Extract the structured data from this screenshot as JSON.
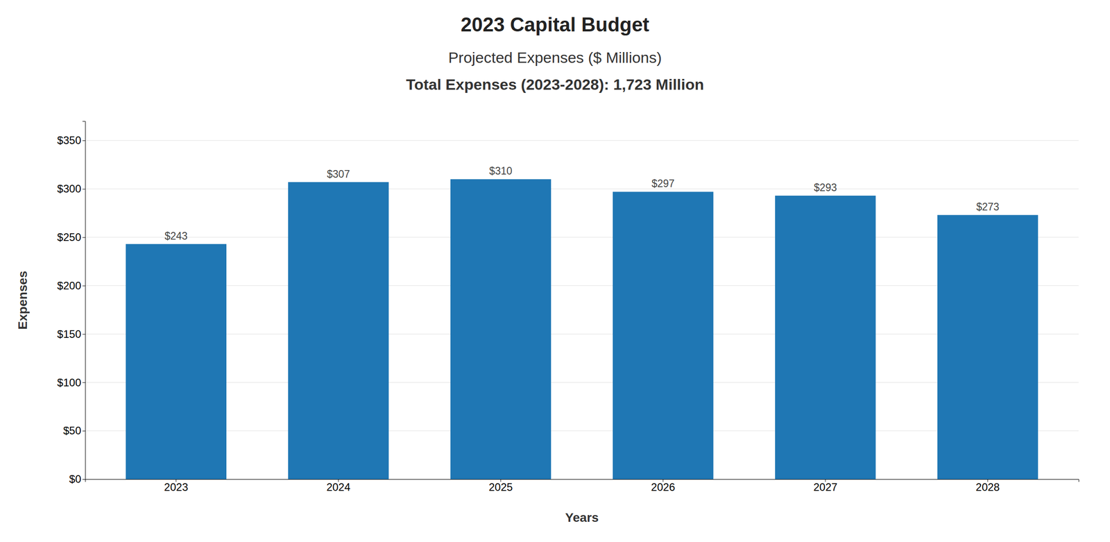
{
  "chart_data": {
    "type": "bar",
    "title": "2023 Capital Budget",
    "subtitle": [
      "Projected Expenses ($ Millions)",
      "Total Expenses (2023-2028): 1,723 Million"
    ],
    "xlabel": "Years",
    "ylabel": "Expenses",
    "categories": [
      "2023",
      "2024",
      "2025",
      "2026",
      "2027",
      "2028"
    ],
    "values": [
      243,
      307,
      310,
      297,
      293,
      273
    ],
    "value_labels": [
      "$243",
      "$307",
      "$310",
      "$297",
      "$293",
      "$273"
    ],
    "data_labels": true,
    "ylim": [
      0,
      370
    ],
    "yticks": [
      {
        "value": 0,
        "label": "$0"
      },
      {
        "value": 50,
        "label": "$50"
      },
      {
        "value": 100,
        "label": "$100"
      },
      {
        "value": 150,
        "label": "$150"
      },
      {
        "value": 200,
        "label": "$200"
      },
      {
        "value": 250,
        "label": "$250"
      },
      {
        "value": 300,
        "label": "$300"
      },
      {
        "value": 350,
        "label": "$350"
      }
    ],
    "grid": true
  }
}
